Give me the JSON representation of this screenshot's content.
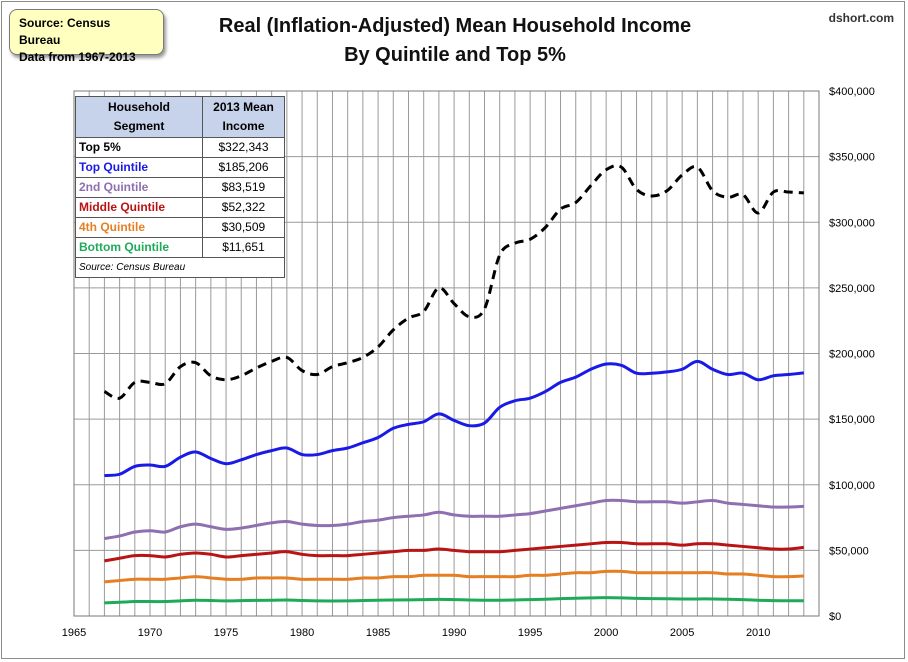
{
  "source_box": {
    "line1": "Source: Census Bureau",
    "line2": "Data from 1967-2013"
  },
  "title": {
    "line1": "Real (Inflation-Adjusted) Mean Household Income",
    "line2": "By Quintile and Top 5%"
  },
  "brand": "dshort.com",
  "table": {
    "header_segment": [
      "Household",
      "Segment"
    ],
    "header_value": [
      "2013 Mean",
      "Income"
    ],
    "rows": [
      {
        "label": "Top 5%",
        "value": "$322,343",
        "color": "#000000"
      },
      {
        "label": "Top Quintile",
        "value": "$185,206",
        "color": "#1a1ae6"
      },
      {
        "label": "2nd Quintile",
        "value": "$83,519",
        "color": "#8e6fb0"
      },
      {
        "label": "Middle Quintile",
        "value": "$52,322",
        "color": "#b81414"
      },
      {
        "label": "4th Quintile",
        "value": "$30,509",
        "color": "#e67e22"
      },
      {
        "label": "Bottom Quintile",
        "value": "$11,651",
        "color": "#1faa5a"
      }
    ],
    "note": "Source: Census Bureau"
  },
  "chart_data": {
    "type": "line",
    "title": "Real (Inflation-Adjusted) Mean Household Income By Quintile and Top 5%",
    "xlim": [
      1965,
      2014
    ],
    "ylim": [
      0,
      400000
    ],
    "x_ticks": [
      "1965",
      "1970",
      "1975",
      "1980",
      "1985",
      "1990",
      "1995",
      "2000",
      "2005",
      "2010"
    ],
    "x_tick_values": [
      1965,
      1970,
      1975,
      1980,
      1985,
      1990,
      1995,
      2000,
      2005,
      2010
    ],
    "y_ticks": [
      "$0",
      "$50,000",
      "$100,000",
      "$150,000",
      "$200,000",
      "$250,000",
      "$300,000",
      "$350,000",
      "$400,000"
    ],
    "y_tick_values": [
      0,
      50000,
      100000,
      150000,
      200000,
      250000,
      300000,
      350000,
      400000
    ],
    "grid": true,
    "y_axis_side": "right",
    "x": [
      1967,
      1968,
      1969,
      1970,
      1971,
      1972,
      1973,
      1974,
      1975,
      1976,
      1977,
      1978,
      1979,
      1980,
      1981,
      1982,
      1983,
      1984,
      1985,
      1986,
      1987,
      1988,
      1989,
      1990,
      1991,
      1992,
      1993,
      1994,
      1995,
      1996,
      1997,
      1998,
      1999,
      2000,
      2001,
      2002,
      2003,
      2004,
      2005,
      2006,
      2007,
      2008,
      2009,
      2010,
      2011,
      2012,
      2013
    ],
    "series": [
      {
        "name": "Top 5%",
        "color": "#000000",
        "dashed": true,
        "values": [
          171000,
          166000,
          178000,
          178000,
          177000,
          190000,
          193000,
          183000,
          180000,
          183000,
          189000,
          194000,
          197000,
          187000,
          184000,
          190000,
          193000,
          197000,
          205000,
          218000,
          227000,
          232000,
          250000,
          238000,
          228000,
          234000,
          275000,
          284000,
          287000,
          296000,
          310000,
          315000,
          328000,
          340000,
          342000,
          325000,
          320000,
          324000,
          336000,
          342000,
          324000,
          319000,
          321000,
          307000,
          323000,
          323000,
          322343
        ]
      },
      {
        "name": "Top Quintile",
        "color": "#1a1ae6",
        "dashed": false,
        "values": [
          107000,
          108000,
          114000,
          115000,
          114000,
          121000,
          125000,
          120000,
          116000,
          119000,
          123000,
          126000,
          128000,
          123000,
          123000,
          126000,
          128000,
          132000,
          136000,
          143000,
          146000,
          148000,
          154000,
          149000,
          145000,
          147000,
          159000,
          164000,
          166000,
          171000,
          178000,
          182000,
          188000,
          192000,
          191000,
          185000,
          185000,
          186000,
          188000,
          194000,
          188000,
          184000,
          185000,
          180000,
          183000,
          184000,
          185206
        ]
      },
      {
        "name": "2nd Quintile",
        "color": "#8e6fb0",
        "dashed": false,
        "values": [
          59000,
          61000,
          64000,
          65000,
          64000,
          68000,
          70000,
          68000,
          66000,
          67000,
          69000,
          71000,
          72000,
          70000,
          69000,
          69000,
          70000,
          72000,
          73000,
          75000,
          76000,
          77000,
          79000,
          77000,
          76000,
          76000,
          76000,
          77000,
          78000,
          80000,
          82000,
          84000,
          86000,
          88000,
          88000,
          87000,
          87000,
          87000,
          86000,
          87000,
          88000,
          86000,
          85000,
          84000,
          83000,
          83000,
          83519
        ]
      },
      {
        "name": "Middle Quintile",
        "color": "#b81414",
        "dashed": false,
        "values": [
          42000,
          44000,
          46000,
          46000,
          45000,
          47000,
          48000,
          47000,
          45000,
          46000,
          47000,
          48000,
          49000,
          47000,
          46000,
          46000,
          46000,
          47000,
          48000,
          49000,
          50000,
          50000,
          51000,
          50000,
          49000,
          49000,
          49000,
          50000,
          51000,
          52000,
          53000,
          54000,
          55000,
          56000,
          56000,
          55000,
          55000,
          55000,
          54000,
          55000,
          55000,
          54000,
          53000,
          52000,
          51000,
          51000,
          52322
        ]
      },
      {
        "name": "4th Quintile",
        "color": "#e67e22",
        "dashed": false,
        "values": [
          26000,
          27000,
          28000,
          28000,
          28000,
          29000,
          30000,
          29000,
          28000,
          28000,
          29000,
          29000,
          29000,
          28000,
          28000,
          28000,
          28000,
          29000,
          29000,
          30000,
          30000,
          31000,
          31000,
          31000,
          30000,
          30000,
          30000,
          30000,
          31000,
          31000,
          32000,
          33000,
          33000,
          34000,
          34000,
          33000,
          33000,
          33000,
          33000,
          33000,
          33000,
          32000,
          32000,
          31000,
          30000,
          30000,
          30509
        ]
      },
      {
        "name": "Bottom Quintile",
        "color": "#1faa5a",
        "dashed": false,
        "values": [
          10000,
          10500,
          11000,
          11000,
          11000,
          11500,
          12000,
          11800,
          11500,
          11700,
          11900,
          12000,
          12200,
          11800,
          11500,
          11400,
          11500,
          11800,
          12000,
          12200,
          12300,
          12500,
          12700,
          12500,
          12200,
          12000,
          12000,
          12200,
          12500,
          12800,
          13200,
          13500,
          13800,
          14000,
          13800,
          13400,
          13200,
          13100,
          13000,
          13000,
          13000,
          12800,
          12500,
          12000,
          11700,
          11600,
          11651
        ]
      }
    ]
  }
}
